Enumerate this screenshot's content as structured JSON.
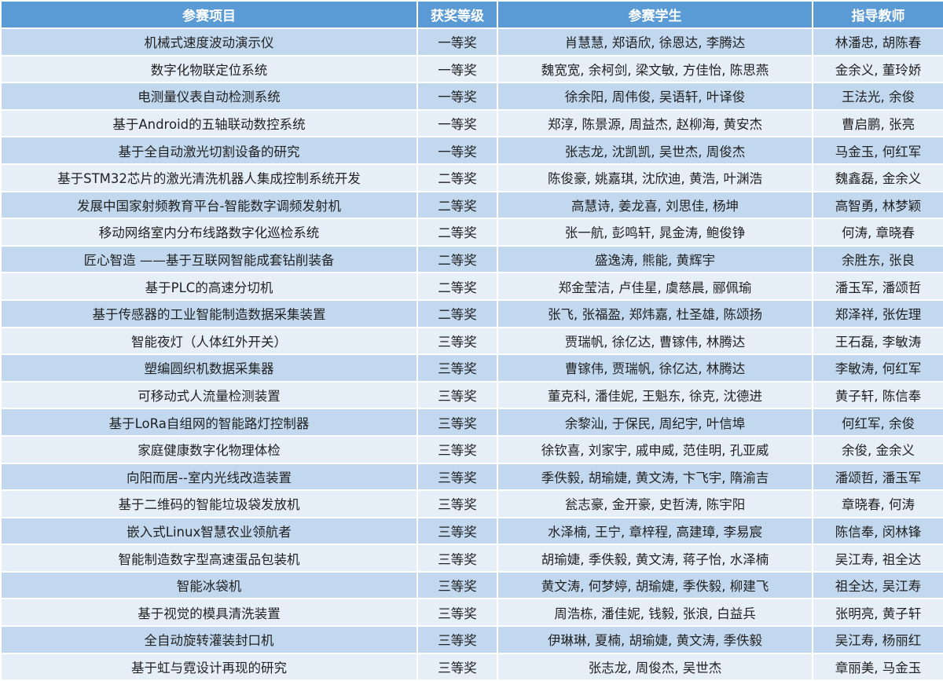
{
  "colors": {
    "header_bg": "#5b9bd5",
    "row_odd": "#c2d8ef",
    "row_even": "#e6eef8"
  },
  "headers": [
    "参赛项目",
    "获奖等级",
    "参赛学生",
    "指导教师"
  ],
  "rows": [
    [
      "机械式速度波动演示仪",
      "一等奖",
      "肖慧慧, 郑语欣, 徐恩达, 李腾达",
      "林潘忠, 胡陈春"
    ],
    [
      "数字化物联定位系统",
      "一等奖",
      "魏宽宽, 余柯剑, 梁文敏, 方佳怡, 陈思燕",
      "金余义, 董玲娇"
    ],
    [
      "电测量仪表自动检测系统",
      "一等奖",
      "徐余阳, 周伟俊, 吴语轩, 叶译俊",
      "王法光, 余俊"
    ],
    [
      "基于Android的五轴联动数控系统",
      "一等奖",
      "郑淳, 陈景源, 周益杰, 赵柳海, 黄安杰",
      "曹启鹏, 张亮"
    ],
    [
      "基于全自动激光切割设备的研究",
      "一等奖",
      "张志龙, 沈凯凯, 吴世杰, 周俊杰",
      "马金玉, 何红军"
    ],
    [
      "基于STM32芯片的激光清洗机器人集成控制系统开发",
      "二等奖",
      "陈俊豪, 姚嘉琪, 沈欣迪, 黄浩, 叶渊浩",
      "魏鑫磊, 金余义"
    ],
    [
      "发展中国家射频教育平台-智能数字调频发射机",
      "二等奖",
      "高慧诗, 姜龙喜, 刘思佳, 杨坤",
      "高智勇, 林梦颖"
    ],
    [
      "移动网络室内分布线路数字化巡检系统",
      "二等奖",
      "张一航, 彭鸣轩, 晁金涛, 鲍俊铮",
      "何涛, 章晓春"
    ],
    [
      "匠心智造 ——基于互联网智能成套钻削装备",
      "二等奖",
      "盛逸涛, 熊能, 黄辉宇",
      "余胜东, 张良"
    ],
    [
      "基于PLC的高速分切机",
      "二等奖",
      "郑金莹洁, 卢佳星, 虞慈晨, 郦佩瑜",
      "潘玉军, 潘颂哲"
    ],
    [
      "基于传感器的工业智能制造数据采集装置",
      "二等奖",
      "张飞, 张福盈, 郑炜嘉, 杜圣雄, 陈颂扬",
      "郑泽祥, 张佐理"
    ],
    [
      "智能夜灯（人体红外开关）",
      "三等奖",
      "贾瑞帆, 徐亿达, 曹镓伟, 林腾达",
      "王石磊, 李敏涛"
    ],
    [
      "塑编圆织机数据采集器",
      "三等奖",
      "曹镓伟, 贾瑞帆, 徐亿达, 林腾达",
      "李敏涛, 何红军"
    ],
    [
      "可移动式人流量检测装置",
      "三等奖",
      "董克科, 潘佳妮, 王魁东, 徐克, 沈德进",
      "黄子轩, 陈信奉"
    ],
    [
      "基于LoRa自组网的智能路灯控制器",
      "三等奖",
      "余黎汕, 于保民, 周纪宇, 叶信埠",
      "何红军, 余俊"
    ],
    [
      "家庭健康数字化物理体检",
      "三等奖",
      "徐钦喜, 刘家宇, 戚申威, 范佳明, 孔亚威",
      "余俊, 金余义"
    ],
    [
      "向阳而居--室内光线改造装置",
      "三等奖",
      "季佚毅, 胡瑜婕, 黄文涛, 卞飞宇, 隋渝吉",
      "潘颂哲, 潘玉军"
    ],
    [
      "基于二维码的智能垃圾袋发放机",
      "三等奖",
      "瓮志豪, 金开豪, 史哲涛, 陈宇阳",
      "章晓春, 何涛"
    ],
    [
      "嵌入式Linux智慧农业领航者",
      "三等奖",
      "水泽楠, 王宁, 章梓程, 高建璋, 李易宸",
      "陈信奉, 闵林锋"
    ],
    [
      "智能制造数字型高速蛋品包装机",
      "三等奖",
      "胡瑜婕, 季佚毅, 黄文涛, 蒋子怡, 水泽楠",
      "吴江寿, 祖全达"
    ],
    [
      "智能冰袋机",
      "三等奖",
      "黄文涛, 何梦婷, 胡瑜婕, 季佚毅, 柳建飞",
      "祖全达, 吴江寿"
    ],
    [
      "基于视觉的模具清洗装置",
      "三等奖",
      "周浩栋, 潘佳妮, 钱毅, 张浪, 白益兵",
      "张明亮, 黄子轩"
    ],
    [
      "全自动旋转灌装封口机",
      "三等奖",
      "伊琳琳, 夏楠, 胡瑜婕, 黄文涛, 季佚毅",
      "吴江寿, 杨丽红"
    ],
    [
      "基于虹与霓设计再现的研究",
      "三等奖",
      "张志龙, 周俊杰, 吴世杰",
      "章丽美, 马金玉"
    ]
  ]
}
